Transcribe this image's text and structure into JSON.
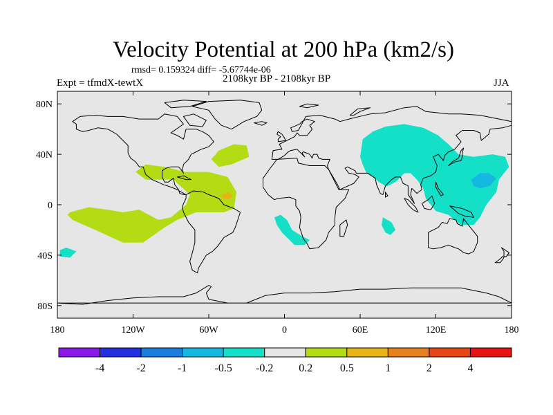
{
  "title": "Velocity Potential at 200 hPa (km2/s)",
  "stats": "rmsd= 0.159324 diff= -5.67744e-06",
  "left_label": "Expt = tfmdX-tewtX",
  "center_label": "2108kyr BP - 2108kyr BP",
  "right_label": "JJA",
  "map": {
    "lon_range": [
      -180,
      180
    ],
    "lat_range": [
      -90,
      90
    ],
    "x_ticks": [
      {
        "value": -180,
        "label": "180"
      },
      {
        "value": -120,
        "label": "120W"
      },
      {
        "value": -60,
        "label": "60W"
      },
      {
        "value": 0,
        "label": "0"
      },
      {
        "value": 60,
        "label": "60E"
      },
      {
        "value": 120,
        "label": "120E"
      },
      {
        "value": 180,
        "label": "180"
      }
    ],
    "y_ticks": [
      {
        "value": 80,
        "label": "80N"
      },
      {
        "value": 40,
        "label": "40N"
      },
      {
        "value": 0,
        "label": "0"
      },
      {
        "value": -40,
        "label": "40S"
      },
      {
        "value": -80,
        "label": "80S"
      }
    ],
    "background_color": "#e6e6e6"
  },
  "colorbar": {
    "colors": [
      "#8c1ae6",
      "#2430e0",
      "#1a7ee0",
      "#14b8e0",
      "#14e0c8",
      "#e6e6e6",
      "#b4dc14",
      "#e6b414",
      "#e6821e",
      "#e64614",
      "#e61414"
    ],
    "labels": [
      "-4",
      "-2",
      "-1",
      "-0.5",
      "-0.2",
      "0.2",
      "0.5",
      "1",
      "2",
      "4"
    ]
  },
  "chart_data": {
    "type": "heatmap",
    "title": "Velocity Potential at 200 hPa (km2/s)",
    "subtitle": "2108kyr BP - 2108kyr BP",
    "season": "JJA",
    "experiment": "tfmdX-tewtX",
    "rmsd": 0.159324,
    "diff": -5.67744e-06,
    "xlabel": "",
    "ylabel": "",
    "xlim": [
      -180,
      180
    ],
    "ylim": [
      -90,
      90
    ],
    "contour_levels": [
      -4,
      -2,
      -1,
      -0.5,
      -0.2,
      0.2,
      0.5,
      1,
      2,
      4
    ],
    "regions": [
      {
        "name": "central-south-pacific-positive",
        "level": "0.2 to 0.5",
        "color": "#b4dc14",
        "polygon": [
          [
            -170,
            -6
          ],
          [
            -155,
            -2
          ],
          [
            -140,
            -4
          ],
          [
            -128,
            -6
          ],
          [
            -115,
            -4
          ],
          [
            -100,
            -12
          ],
          [
            -90,
            -10
          ],
          [
            -78,
            0
          ],
          [
            -75,
            8
          ],
          [
            -88,
            20
          ],
          [
            -110,
            20
          ],
          [
            -118,
            26
          ],
          [
            -110,
            32
          ],
          [
            -95,
            30
          ],
          [
            -78,
            26
          ],
          [
            -60,
            26
          ],
          [
            -45,
            22
          ],
          [
            -38,
            10
          ],
          [
            -40,
            -3
          ],
          [
            -48,
            -6
          ],
          [
            -60,
            -6
          ],
          [
            -70,
            -6
          ],
          [
            -85,
            -12
          ],
          [
            -95,
            -18
          ],
          [
            -112,
            -30
          ],
          [
            -128,
            -30
          ],
          [
            -150,
            -20
          ],
          [
            -168,
            -12
          ],
          [
            -172,
            -8
          ]
        ]
      },
      {
        "name": "central-atlantic-positive-blob",
        "level": "0.2 to 0.5",
        "color": "#b4dc14",
        "polygon": [
          [
            -52,
            43
          ],
          [
            -40,
            48
          ],
          [
            -30,
            47
          ],
          [
            -28,
            38
          ],
          [
            -42,
            32
          ],
          [
            -52,
            30
          ],
          [
            -58,
            36
          ]
        ]
      },
      {
        "name": "equatorial-atlantic-max",
        "level": "0.5 to 1",
        "color": "#e6b414",
        "polygon": [
          [
            -50,
            8
          ],
          [
            -44,
            10
          ],
          [
            -41,
            7
          ],
          [
            -44,
            4
          ],
          [
            -49,
            5
          ]
        ]
      },
      {
        "name": "asia-negative",
        "level": "-0.5 to -0.2",
        "color": "#14e0c8",
        "polygon": [
          [
            60,
            38
          ],
          [
            62,
            52
          ],
          [
            70,
            58
          ],
          [
            80,
            62
          ],
          [
            95,
            64
          ],
          [
            110,
            61
          ],
          [
            122,
            55
          ],
          [
            130,
            48
          ],
          [
            138,
            40
          ],
          [
            150,
            38
          ],
          [
            165,
            40
          ],
          [
            175,
            38
          ],
          [
            178,
            30
          ],
          [
            170,
            20
          ],
          [
            168,
            10
          ],
          [
            160,
            0
          ],
          [
            155,
            -10
          ],
          [
            150,
            -16
          ],
          [
            140,
            -16
          ],
          [
            130,
            -8
          ],
          [
            120,
            -5
          ],
          [
            112,
            5
          ],
          [
            110,
            13
          ],
          [
            105,
            20
          ],
          [
            100,
            25
          ],
          [
            95,
            25
          ],
          [
            88,
            18
          ],
          [
            82,
            15
          ],
          [
            80,
            15
          ],
          [
            75,
            18
          ],
          [
            70,
            22
          ],
          [
            65,
            25
          ],
          [
            62,
            32
          ]
        ]
      },
      {
        "name": "west-pacific-negative-core",
        "level": "-1 to -0.5",
        "color": "#14b8e0",
        "polygon": [
          [
            148,
            20
          ],
          [
            155,
            25
          ],
          [
            162,
            25
          ],
          [
            168,
            21
          ],
          [
            163,
            15
          ],
          [
            155,
            13
          ],
          [
            150,
            15
          ]
        ]
      },
      {
        "name": "south-atlantic-negative",
        "level": "-0.5 to -0.2",
        "color": "#14e0c8",
        "polygon": [
          [
            -8,
            -10
          ],
          [
            -3,
            -8
          ],
          [
            2,
            -12
          ],
          [
            6,
            -20
          ],
          [
            14,
            -25
          ],
          [
            20,
            -28
          ],
          [
            16,
            -32
          ],
          [
            8,
            -32
          ],
          [
            -2,
            -22
          ],
          [
            -6,
            -16
          ]
        ]
      },
      {
        "name": "indian-ocean-negative",
        "level": "-0.5 to -0.2",
        "color": "#14e0c8",
        "polygon": [
          [
            78,
            -10
          ],
          [
            85,
            -14
          ],
          [
            88,
            -20
          ],
          [
            84,
            -24
          ],
          [
            80,
            -22
          ],
          [
            77,
            -16
          ]
        ]
      },
      {
        "name": "south-pacific-negative",
        "level": "-0.5 to -0.2",
        "color": "#14e0c8",
        "polygon": [
          [
            -178,
            -36
          ],
          [
            -173,
            -34
          ],
          [
            -165,
            -37
          ],
          [
            -170,
            -42
          ],
          [
            -178,
            -41
          ]
        ]
      }
    ]
  }
}
